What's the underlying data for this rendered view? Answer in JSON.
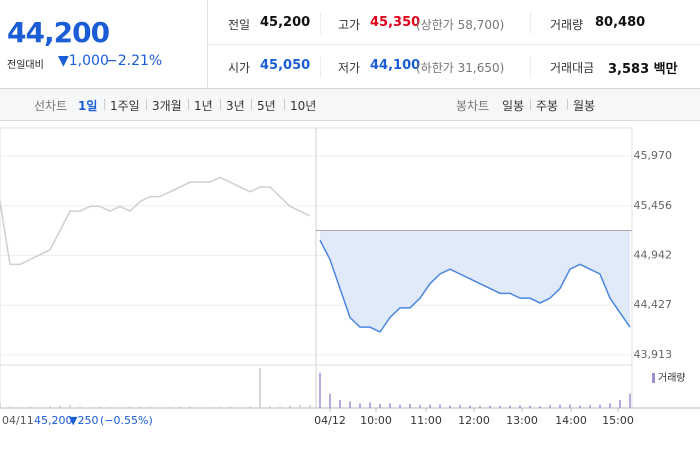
{
  "quote": {
    "price": "44,200",
    "change_label": "전일대비",
    "change": "▼1,000",
    "change_pct": "−2.21%"
  },
  "stats": [
    {
      "label": "전일",
      "value": "45,200"
    },
    {
      "label": "고가",
      "value": "45,350",
      "note": "(상한가 58,700)"
    },
    {
      "label": "거래량",
      "value": "80,480"
    },
    {
      "label": "시가",
      "value": "45,050"
    },
    {
      "label": "저가",
      "value": "44,100",
      "note": "(하한가 31,650)"
    },
    {
      "label": "거래대금",
      "value": "3,583 백만"
    }
  ],
  "tabs": {
    "line": {
      "label": "선차트",
      "items": [
        "1일",
        "1주일",
        "3개월",
        "1년",
        "3년",
        "5년",
        "10년"
      ]
    },
    "candle": {
      "label": "봉차트",
      "items": [
        "일봉",
        "주봉",
        "월봉"
      ]
    }
  },
  "chart_data": {
    "type": "line",
    "prev_close": 45200,
    "ylim": [
      43860,
      46240
    ],
    "yticks": [
      {
        "value": 45970,
        "label": "45,970"
      },
      {
        "value": 45456,
        "label": "45,456"
      },
      {
        "value": 44942,
        "label": "44,942"
      },
      {
        "value": 44427,
        "label": "44,427"
      },
      {
        "value": 43913,
        "label": "43,913"
      }
    ],
    "xlim": [
      0,
      63
    ],
    "xticks": [
      {
        "value": 33,
        "label": "04/12"
      },
      {
        "value": 37.6,
        "label": "10:00"
      },
      {
        "value": 42.6,
        "label": "11:00"
      },
      {
        "value": 47.4,
        "label": "12:00"
      },
      {
        "value": 52.2,
        "label": "13:00"
      },
      {
        "value": 57.1,
        "label": "14:00"
      },
      {
        "value": 61.8,
        "label": "15:00"
      }
    ],
    "series": [
      {
        "color": "#cfcfcf",
        "volume_color": "#c8c8c8",
        "values": [
          45500,
          44850,
          44850,
          44900,
          44950,
          45000,
          45200,
          45400,
          45400,
          45450,
          45450,
          45400,
          45450,
          45400,
          45500,
          45550,
          45550,
          45600,
          45650,
          45700,
          45700,
          45700,
          45750,
          45700,
          45650,
          45600,
          45650,
          45650,
          45550,
          45450,
          45400,
          45350
        ],
        "volume": [
          300,
          80,
          60,
          90,
          70,
          120,
          150,
          200,
          90,
          60,
          80,
          70,
          60,
          90,
          100,
          80,
          60,
          70,
          90,
          100,
          80,
          60,
          70,
          90,
          80,
          100,
          2500,
          120,
          90,
          150,
          200,
          180
        ]
      },
      {
        "color": "#4a86e0",
        "volume_color": "#9c8fd4",
        "values": [
          45100,
          44900,
          44600,
          44300,
          44200,
          44200,
          44150,
          44300,
          44400,
          44400,
          44500,
          44650,
          44750,
          44800,
          44750,
          44700,
          44650,
          44600,
          44550,
          44550,
          44500,
          44500,
          44450,
          44500,
          44600,
          44800,
          44850,
          44800,
          44750,
          44500,
          44350,
          44200
        ],
        "volume": [
          2200,
          900,
          500,
          400,
          300,
          350,
          250,
          300,
          200,
          250,
          180,
          200,
          220,
          150,
          180,
          160,
          120,
          140,
          130,
          150,
          160,
          140,
          120,
          180,
          200,
          220,
          160,
          180,
          200,
          300,
          500,
          900
        ]
      }
    ],
    "volume_label": "거래량",
    "info": {
      "date": "04/11",
      "price": "45,200",
      "change": "▼250",
      "change_pct": "(−0.55%)"
    }
  }
}
